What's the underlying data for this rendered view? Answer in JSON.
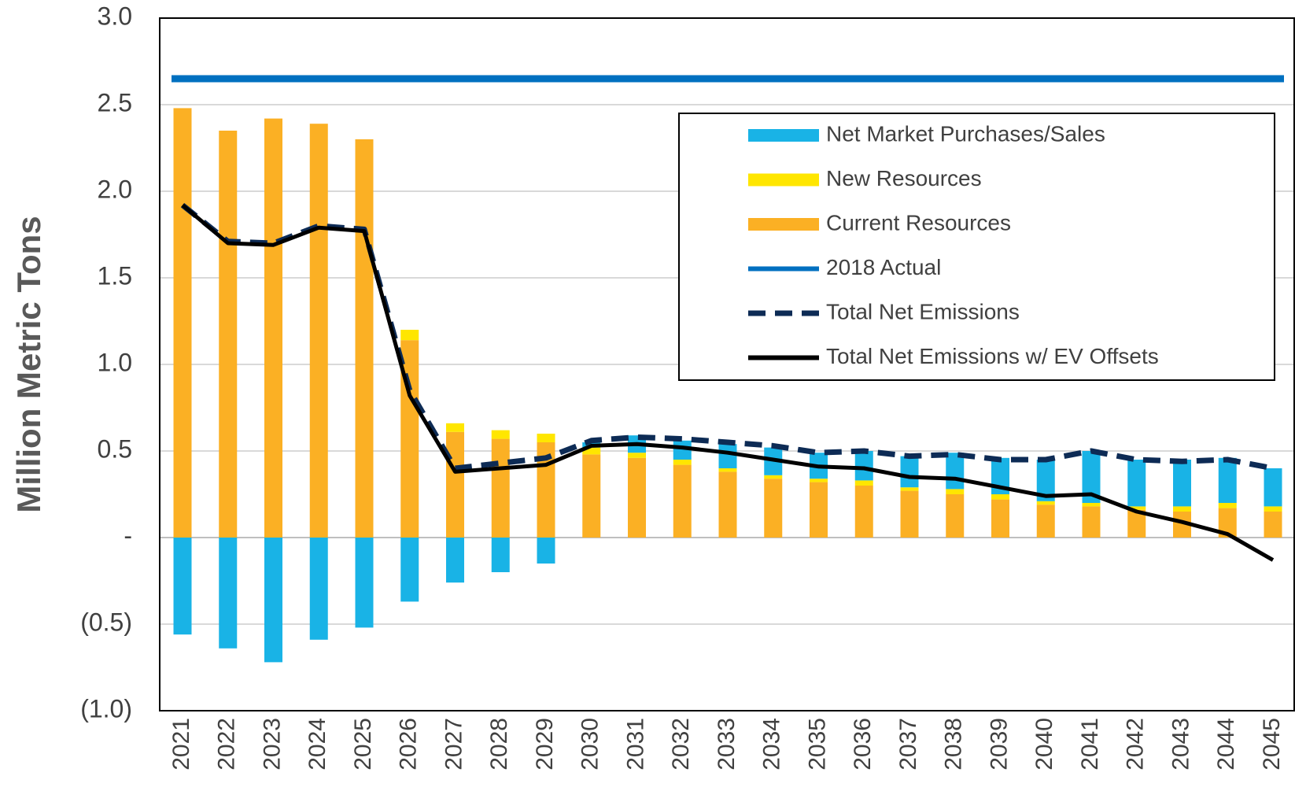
{
  "chart_data": {
    "type": "bar",
    "y_label": "Million Metric Tons",
    "categories": [
      "2021",
      "2022",
      "2023",
      "2024",
      "2025",
      "2026",
      "2027",
      "2028",
      "2029",
      "2030",
      "2031",
      "2032",
      "2033",
      "2034",
      "2035",
      "2036",
      "2037",
      "2038",
      "2039",
      "2040",
      "2041",
      "2042",
      "2043",
      "2044",
      "2045"
    ],
    "ylim": [
      -1,
      3
    ],
    "yticks": [
      {
        "value": -1,
        "label": "(1.0)"
      },
      {
        "value": -0.5,
        "label": "(0.5)"
      },
      {
        "value": 0,
        "label": "-"
      },
      0.5,
      {
        "value": 1,
        "label": "1.0"
      },
      1.5,
      {
        "value": 2,
        "label": "2.0"
      },
      2.5,
      {
        "value": 3,
        "label": "3.0"
      }
    ],
    "grid": true,
    "legend": "top-right",
    "series": [
      {
        "name": "Net Market Purchases/Sales",
        "kind": "bar",
        "color": "#19b3e6",
        "values": [
          -0.56,
          -0.64,
          -0.72,
          -0.59,
          -0.52,
          -0.37,
          -0.26,
          -0.2,
          -0.15,
          0.03,
          0.1,
          0.11,
          0.14,
          0.16,
          0.15,
          0.17,
          0.18,
          0.21,
          0.21,
          0.24,
          0.3,
          0.27,
          0.27,
          0.26,
          0.22
        ]
      },
      {
        "name": "New Resources",
        "kind": "bar",
        "color": "#ffe600",
        "values": [
          0,
          0,
          0,
          0,
          0,
          0.06,
          0.05,
          0.05,
          0.05,
          0.04,
          0.03,
          0.03,
          0.02,
          0.02,
          0.02,
          0.03,
          0.02,
          0.03,
          0.03,
          0.02,
          0.02,
          0.02,
          0.03,
          0.03,
          0.03
        ]
      },
      {
        "name": "Current Resources",
        "kind": "bar",
        "color": "#fbb024",
        "values": [
          2.48,
          2.35,
          2.42,
          2.39,
          2.3,
          1.14,
          0.61,
          0.57,
          0.55,
          0.48,
          0.46,
          0.42,
          0.38,
          0.34,
          0.32,
          0.3,
          0.27,
          0.25,
          0.22,
          0.19,
          0.18,
          0.16,
          0.15,
          0.17,
          0.15
        ]
      },
      {
        "name": "2018 Actual",
        "kind": "line",
        "color": "#0070c0",
        "values": [
          2.65,
          2.65,
          2.65,
          2.65,
          2.65,
          2.65,
          2.65,
          2.65,
          2.65,
          2.65,
          2.65,
          2.65,
          2.65,
          2.65,
          2.65,
          2.65,
          2.65,
          2.65,
          2.65,
          2.65,
          2.65,
          2.65,
          2.65,
          2.65,
          2.65
        ]
      },
      {
        "name": "Total Net Emissions",
        "kind": "line",
        "dashed": true,
        "color": "#0d2b55",
        "values": [
          1.92,
          1.71,
          1.7,
          1.8,
          1.78,
          0.85,
          0.4,
          0.43,
          0.46,
          0.56,
          0.58,
          0.57,
          0.55,
          0.53,
          0.49,
          0.5,
          0.47,
          0.48,
          0.45,
          0.45,
          0.5,
          0.45,
          0.44,
          0.45,
          0.4
        ]
      },
      {
        "name": "Total Net Emissions w/ EV Offsets",
        "kind": "line",
        "color": "#000000",
        "values": [
          1.92,
          1.7,
          1.69,
          1.79,
          1.77,
          0.82,
          0.38,
          0.4,
          0.42,
          0.53,
          0.54,
          0.52,
          0.49,
          0.45,
          0.41,
          0.4,
          0.35,
          0.34,
          0.29,
          0.24,
          0.25,
          0.15,
          0.09,
          0.02,
          -0.13
        ]
      }
    ]
  }
}
